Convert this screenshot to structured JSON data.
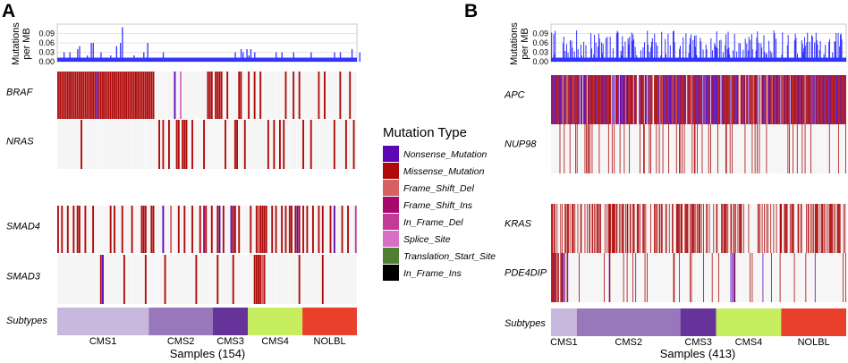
{
  "chart_data": [
    {
      "type": "heatmap",
      "panel_label": "A",
      "title": "",
      "xlabel": "Samples (154)",
      "n_samples": 154,
      "bar_chart": {
        "ylabel_line1": "Mutations",
        "ylabel_line2": "per MB",
        "yticks": [
          "0.09",
          "0.06",
          "0.03",
          "0.00"
        ],
        "ylim": [
          0,
          0.12
        ],
        "values": [
          0.01,
          0.01,
          0.01,
          0.03,
          0.01,
          0.01,
          0.03,
          0.01,
          0.01,
          0.01,
          0.04,
          0.05,
          0.01,
          0.01,
          0.01,
          0.02,
          0.01,
          0.06,
          0.06,
          0.01,
          0.01,
          0.01,
          0.03,
          0.01,
          0.01,
          0.01,
          0.01,
          0.02,
          0.01,
          0.01,
          0.05,
          0.01,
          0.06,
          0.11,
          0.01,
          0.01,
          0.01,
          0.01,
          0.01,
          0.02,
          0.01,
          0.01,
          0.01,
          0.01,
          0.03,
          0.01,
          0.06,
          0.01,
          0.01,
          0.01,
          0.01,
          0.01,
          0.01,
          0.01,
          0.03,
          0.01,
          0.01,
          0.01,
          0.01,
          0.01,
          0.01,
          0.01,
          0.01,
          0.01,
          0.01,
          0.01,
          0.01,
          0.01,
          0.01,
          0.01,
          0.01,
          0.01,
          0.01,
          0.01,
          0.01,
          0.01,
          0.01,
          0.01,
          0.01,
          0.01,
          0.01,
          0.01,
          0.01,
          0.01,
          0.01,
          0.01,
          0.01,
          0.01,
          0.01,
          0.01,
          0.01,
          0.03,
          0.01,
          0.01,
          0.04,
          0.03,
          0.01,
          0.04,
          0.02,
          0.04,
          0.01,
          0.03,
          0.01,
          0.01,
          0.01,
          0.01,
          0.01,
          0.01,
          0.01,
          0.01,
          0.01,
          0.01,
          0.03,
          0.01,
          0.01,
          0.03,
          0.01,
          0.01,
          0.01,
          0.01,
          0.01,
          0.03,
          0.01,
          0.01,
          0.01,
          0.01,
          0.01,
          0.01,
          0.01,
          0.01,
          0.03,
          0.01,
          0.01,
          0.01,
          0.01,
          0.01,
          0.01,
          0.01,
          0.01,
          0.01,
          0.01,
          0.01,
          0.03,
          0.01,
          0.01,
          0.03,
          0.01,
          0.01,
          0.01,
          0.01,
          0.01,
          0.04,
          0.01,
          0.01,
          0.01,
          0.03
        ]
      },
      "genes": [
        {
          "name": "BRAF",
          "block": 0,
          "mutations": [
            [
              0,
              "M"
            ],
            [
              1,
              "M"
            ],
            [
              2,
              "M"
            ],
            [
              3,
              "M"
            ],
            [
              4,
              "M"
            ],
            [
              5,
              "M"
            ],
            [
              6,
              "M"
            ],
            [
              7,
              "M"
            ],
            [
              8,
              "M"
            ],
            [
              9,
              "M"
            ],
            [
              10,
              "M"
            ],
            [
              11,
              "M"
            ],
            [
              12,
              "M"
            ],
            [
              13,
              "M"
            ],
            [
              14,
              "M"
            ],
            [
              15,
              "M"
            ],
            [
              16,
              "M"
            ],
            [
              17,
              "M"
            ],
            [
              18,
              "M"
            ],
            [
              19,
              "M"
            ],
            [
              20,
              "N"
            ],
            [
              21,
              "M"
            ],
            [
              22,
              "M"
            ],
            [
              23,
              "M"
            ],
            [
              24,
              "M"
            ],
            [
              25,
              "M"
            ],
            [
              26,
              "M"
            ],
            [
              27,
              "M"
            ],
            [
              28,
              "M"
            ],
            [
              29,
              "M"
            ],
            [
              30,
              "M"
            ],
            [
              31,
              "M"
            ],
            [
              32,
              "M"
            ],
            [
              33,
              "M"
            ],
            [
              34,
              "M"
            ],
            [
              35,
              "M"
            ],
            [
              36,
              "M"
            ],
            [
              37,
              "M"
            ],
            [
              38,
              "M"
            ],
            [
              39,
              "M"
            ],
            [
              40,
              "M"
            ],
            [
              41,
              "M"
            ],
            [
              42,
              "M"
            ],
            [
              43,
              "M"
            ],
            [
              44,
              "M"
            ],
            [
              45,
              "M"
            ],
            [
              46,
              "M"
            ],
            [
              47,
              "M"
            ],
            [
              48,
              "M"
            ],
            [
              49,
              "M"
            ],
            [
              60,
              "N"
            ],
            [
              63,
              "SS"
            ],
            [
              77,
              "M"
            ],
            [
              78,
              "M"
            ],
            [
              79,
              "M"
            ],
            [
              81,
              "M"
            ],
            [
              82,
              "M"
            ],
            [
              83,
              "M"
            ],
            [
              84,
              "M"
            ],
            [
              87,
              "M"
            ],
            [
              93,
              "M"
            ],
            [
              94,
              "M"
            ],
            [
              98,
              "M"
            ],
            [
              101,
              "M"
            ],
            [
              104,
              "M"
            ],
            [
              117,
              "M"
            ],
            [
              121,
              "M"
            ],
            [
              124,
              "M"
            ],
            [
              134,
              "M"
            ],
            [
              137,
              "M"
            ],
            [
              145,
              "M"
            ],
            [
              150,
              "M"
            ]
          ]
        },
        {
          "name": "NRAS",
          "block": 0,
          "mutations": [
            [
              12,
              "M"
            ],
            [
              52,
              "M"
            ],
            [
              54,
              "M"
            ],
            [
              57,
              "M"
            ],
            [
              61,
              "M"
            ],
            [
              62,
              "M"
            ],
            [
              64,
              "M"
            ],
            [
              65,
              "M"
            ],
            [
              66,
              "M"
            ],
            [
              69,
              "M"
            ],
            [
              75,
              "M"
            ],
            [
              86,
              "M"
            ],
            [
              91,
              "M"
            ],
            [
              92,
              "M"
            ],
            [
              96,
              "M"
            ],
            [
              108,
              "M"
            ],
            [
              111,
              "M"
            ],
            [
              114,
              "M"
            ],
            [
              116,
              "M"
            ],
            [
              126,
              "M"
            ],
            [
              130,
              "M"
            ],
            [
              142,
              "M"
            ],
            [
              148,
              "M"
            ],
            [
              152,
              "M"
            ]
          ]
        },
        {
          "name": "SMAD4",
          "block": 1,
          "mutations": [
            [
              0,
              "M"
            ],
            [
              2,
              "M"
            ],
            [
              5,
              "M"
            ],
            [
              8,
              "M"
            ],
            [
              10,
              "M"
            ],
            [
              11,
              "M"
            ],
            [
              14,
              "M"
            ],
            [
              18,
              "M"
            ],
            [
              27,
              "M"
            ],
            [
              29,
              "M"
            ],
            [
              33,
              "M"
            ],
            [
              38,
              "M"
            ],
            [
              43,
              "M"
            ],
            [
              44,
              "M"
            ],
            [
              45,
              "M"
            ],
            [
              48,
              "M"
            ],
            [
              49,
              "M"
            ],
            [
              54,
              "N"
            ],
            [
              58,
              "FSD"
            ],
            [
              62,
              "M"
            ],
            [
              65,
              "M"
            ],
            [
              69,
              "M"
            ],
            [
              73,
              "M"
            ],
            [
              75,
              "FSI"
            ],
            [
              76,
              "M"
            ],
            [
              79,
              "M"
            ],
            [
              82,
              "M"
            ],
            [
              83,
              "N"
            ],
            [
              85,
              "M"
            ],
            [
              89,
              "N"
            ],
            [
              90,
              "M"
            ],
            [
              91,
              "M"
            ],
            [
              93,
              "M"
            ],
            [
              99,
              "M"
            ],
            [
              102,
              "M"
            ],
            [
              103,
              "FSD"
            ],
            [
              104,
              "M"
            ],
            [
              105,
              "M"
            ],
            [
              106,
              "M"
            ],
            [
              107,
              "M"
            ],
            [
              110,
              "M"
            ],
            [
              112,
              "M"
            ],
            [
              115,
              "M"
            ],
            [
              117,
              "M"
            ],
            [
              119,
              "M"
            ],
            [
              120,
              "M"
            ],
            [
              122,
              "M"
            ],
            [
              123,
              "N"
            ],
            [
              124,
              "M"
            ],
            [
              126,
              "M"
            ],
            [
              128,
              "M"
            ],
            [
              131,
              "M"
            ],
            [
              134,
              "M"
            ],
            [
              136,
              "M"
            ],
            [
              140,
              "M"
            ],
            [
              142,
              "N"
            ],
            [
              146,
              "M"
            ],
            [
              149,
              "M"
            ],
            [
              153,
              "IFD"
            ]
          ]
        },
        {
          "name": "SMAD3",
          "block": 1,
          "mutations": [
            [
              22,
              "M"
            ],
            [
              23,
              "N"
            ],
            [
              34,
              "M"
            ],
            [
              45,
              "M"
            ],
            [
              55,
              "M"
            ],
            [
              71,
              "M"
            ],
            [
              82,
              "M"
            ],
            [
              90,
              "M"
            ],
            [
              101,
              "M"
            ],
            [
              102,
              "M"
            ],
            [
              103,
              "M"
            ],
            [
              104,
              "M"
            ],
            [
              105,
              "FSD"
            ],
            [
              106,
              "M"
            ],
            [
              124,
              "M"
            ],
            [
              136,
              "M"
            ]
          ]
        }
      ],
      "subtypes": [
        {
          "name": "CMS1",
          "start": 0,
          "end": 47,
          "color": "#C8B8DE"
        },
        {
          "name": "CMS2",
          "start": 47,
          "end": 80,
          "color": "#9878BA"
        },
        {
          "name": "CMS3",
          "start": 80,
          "end": 98,
          "color": "#66339A"
        },
        {
          "name": "CMS4",
          "start": 98,
          "end": 126,
          "color": "#C7EE5E"
        },
        {
          "name": "NOLBL",
          "start": 126,
          "end": 154,
          "color": "#E8402B"
        }
      ],
      "subtype_row_label": "Subtypes"
    },
    {
      "type": "heatmap",
      "panel_label": "B",
      "title": "",
      "xlabel": "Samples (413)",
      "n_samples": 413,
      "bar_chart": {
        "ylabel_line1": "Mutations",
        "ylabel_line2": "per MB",
        "yticks": [
          "0.09",
          "0.06",
          "0.03",
          "0.00"
        ],
        "ylim": [
          0,
          0.12
        ],
        "generator": {
          "seed": 7,
          "base": 0.01,
          "spike_prob": 0.4,
          "spike_min": 0.02,
          "spike_max": 0.1
        }
      },
      "genes": [
        {
          "name": "APC",
          "block": 0,
          "generator": {
            "seed": 11,
            "prob": 0.93,
            "mix": {
              "N": 0.4,
              "M": 0.55,
              "FSD": 0.05
            }
          }
        },
        {
          "name": "NUP98",
          "block": 0,
          "generator": {
            "seed": 23,
            "prob": 0.1,
            "mix": {
              "M": 1.0
            }
          }
        },
        {
          "name": "KRAS",
          "block": 1,
          "generator": {
            "seed": 31,
            "prob": 0.45,
            "mix": {
              "M": 1.0
            }
          }
        },
        {
          "name": "PDE4DIP",
          "block": 1,
          "generator": {
            "seed": 47,
            "prob": 0.08,
            "mix": {
              "M": 0.85,
              "N": 0.15
            }
          },
          "dense_start_end": [
            0,
            26
          ]
        }
      ],
      "subtypes": [
        {
          "name": "CMS1",
          "start": 0,
          "end": 36,
          "color": "#C8B8DE"
        },
        {
          "name": "CMS2",
          "start": 36,
          "end": 181,
          "color": "#9878BA"
        },
        {
          "name": "CMS3",
          "start": 181,
          "end": 231,
          "color": "#66339A"
        },
        {
          "name": "CMS4",
          "start": 231,
          "end": 322,
          "color": "#C7EE5E"
        },
        {
          "name": "NOLBL",
          "start": 322,
          "end": 413,
          "color": "#E8402B"
        }
      ],
      "subtype_row_label": "Subtypes"
    }
  ],
  "legend": {
    "title": "Mutation Type",
    "items": [
      {
        "key": "N",
        "label": "Nonsense_Mutation",
        "color": "#5A09B5"
      },
      {
        "key": "M",
        "label": "Missense_Mutation",
        "color": "#AE0A0A"
      },
      {
        "key": "FSD",
        "label": "Frame_Shift_Del",
        "color": "#D76060"
      },
      {
        "key": "FSI",
        "label": "Frame_Shift_Ins",
        "color": "#A6086C"
      },
      {
        "key": "IFD",
        "label": "In_Frame_Del",
        "color": "#C23B96"
      },
      {
        "key": "SS",
        "label": "Splice_Site",
        "color": "#D86FC4"
      },
      {
        "key": "TSS",
        "label": "Translation_Start_Site",
        "color": "#4F7F30"
      },
      {
        "key": "IFI",
        "label": "In_Frame_Ins",
        "color": "#000000"
      }
    ]
  },
  "colors": {
    "bar": "#3333FF",
    "empty_cell": "#F3F3F3",
    "grid": "#DDDDDD"
  }
}
